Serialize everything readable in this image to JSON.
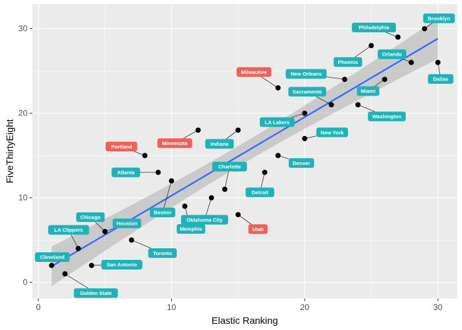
{
  "chart_data": {
    "type": "scatter",
    "title": "",
    "xlabel": "Elastic Ranking",
    "ylabel": "FiveThirtyEight",
    "xlim": [
      -0.45,
      31.45
    ],
    "ylim": [
      -1.9,
      32.9
    ],
    "x_ticks": [
      0,
      10,
      20,
      30
    ],
    "y_ticks": [
      0,
      10,
      20,
      30
    ],
    "grid": true,
    "trend_line": {
      "type": "linear",
      "color": "#3366FF",
      "band_color": "#999999"
    },
    "colors": {
      "panel": "#EBEBEB",
      "point": "#000000",
      "label_default": "#20B2B9",
      "label_highlight": "#F0605A"
    },
    "points": [
      {
        "label": "Cleveland",
        "x": 1,
        "y": 2,
        "highlight": false
      },
      {
        "label": "Golden State",
        "x": 2,
        "y": 1,
        "highlight": false
      },
      {
        "label": "LA Clippers",
        "x": 3,
        "y": 4,
        "highlight": false
      },
      {
        "label": "San Antonio",
        "x": 4,
        "y": 2,
        "highlight": false
      },
      {
        "label": "Chicago",
        "x": 5,
        "y": 6,
        "highlight": false
      },
      {
        "label": "Houston",
        "x": 5,
        "y": 6,
        "highlight": false
      },
      {
        "label": "Toronto",
        "x": 7,
        "y": 5,
        "highlight": false
      },
      {
        "label": "Portland",
        "x": 8,
        "y": 15,
        "highlight": true
      },
      {
        "label": "Atlanta",
        "x": 9,
        "y": 13,
        "highlight": false
      },
      {
        "label": "Boston",
        "x": 10,
        "y": 12,
        "highlight": false
      },
      {
        "label": "Memphis",
        "x": 11,
        "y": 9,
        "highlight": false
      },
      {
        "label": "Minnesota",
        "x": 12,
        "y": 18,
        "highlight": true
      },
      {
        "label": "Oklahoma City",
        "x": 13,
        "y": 10,
        "highlight": false
      },
      {
        "label": "Charlotte",
        "x": 14,
        "y": 11,
        "highlight": false
      },
      {
        "label": "Indiana",
        "x": 15,
        "y": 18,
        "highlight": false
      },
      {
        "label": "Utah",
        "x": 15,
        "y": 8,
        "highlight": true
      },
      {
        "label": "Detroit",
        "x": 17,
        "y": 13,
        "highlight": false
      },
      {
        "label": "Milwaukee",
        "x": 18,
        "y": 23,
        "highlight": true
      },
      {
        "label": "Denver",
        "x": 18,
        "y": 15,
        "highlight": false
      },
      {
        "label": "LA Lakers",
        "x": 20,
        "y": 20,
        "highlight": false
      },
      {
        "label": "New York",
        "x": 20,
        "y": 17,
        "highlight": false
      },
      {
        "label": "Sacramento",
        "x": 22,
        "y": 21,
        "highlight": false
      },
      {
        "label": "New Orleans",
        "x": 23,
        "y": 24,
        "highlight": false
      },
      {
        "label": "Washington",
        "x": 24,
        "y": 21,
        "highlight": false
      },
      {
        "label": "Phoenix",
        "x": 25,
        "y": 28,
        "highlight": false
      },
      {
        "label": "Miami",
        "x": 26,
        "y": 24,
        "highlight": false
      },
      {
        "label": "Philadelphia",
        "x": 27,
        "y": 29,
        "highlight": false
      },
      {
        "label": "Orlando",
        "x": 28,
        "y": 26,
        "highlight": false
      },
      {
        "label": "Brooklyn",
        "x": 29,
        "y": 30,
        "highlight": false
      },
      {
        "label": "Dallas",
        "x": 30,
        "y": 26,
        "highlight": false
      }
    ]
  }
}
